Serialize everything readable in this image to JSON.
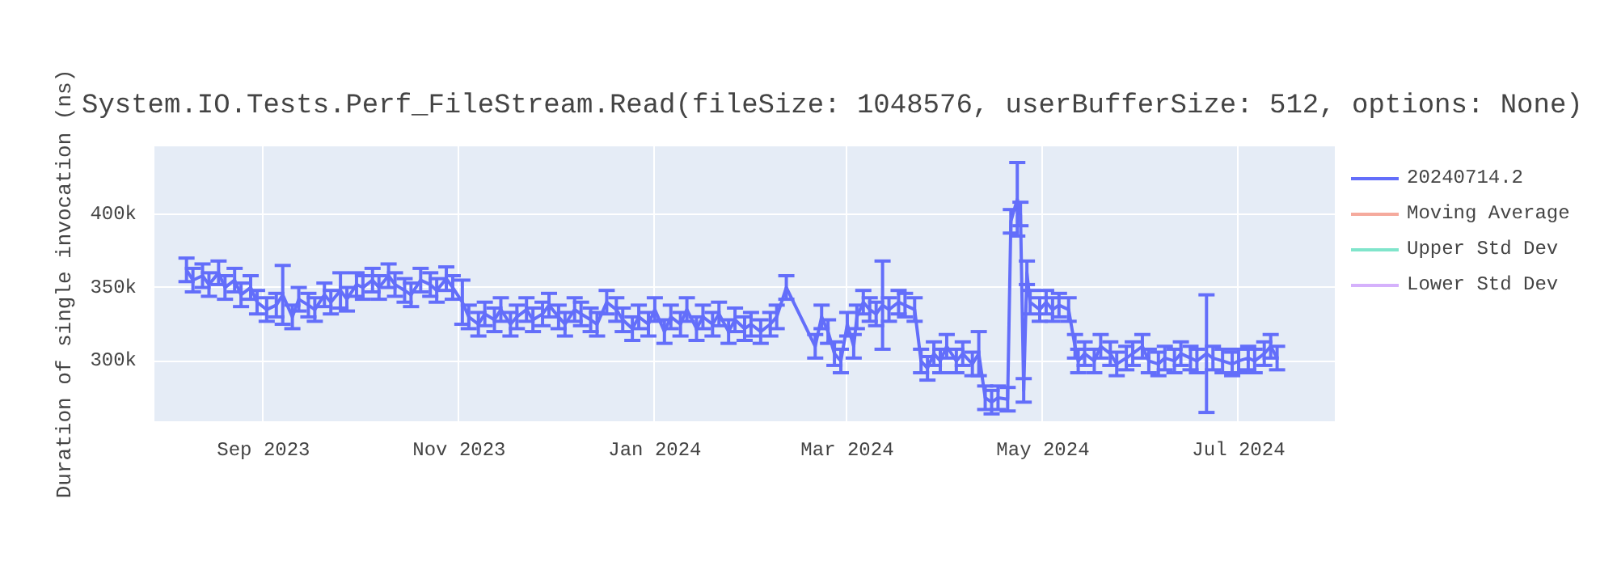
{
  "chart_data": {
    "type": "line",
    "title": "System.IO.Tests.Perf_FileStream.Read(fileSize: 1048576, userBufferSize: 512, options: None)",
    "ylabel": "Duration of single invocation (ns)",
    "x": [
      "2023-08-08",
      "2023-08-10",
      "2023-08-13",
      "2023-08-15",
      "2023-08-18",
      "2023-08-20",
      "2023-08-23",
      "2023-08-25",
      "2023-08-28",
      "2023-08-30",
      "2023-09-02",
      "2023-09-05",
      "2023-09-07",
      "2023-09-10",
      "2023-09-12",
      "2023-09-15",
      "2023-09-17",
      "2023-09-20",
      "2023-09-22",
      "2023-09-25",
      "2023-09-27",
      "2023-09-30",
      "2023-10-02",
      "2023-10-05",
      "2023-10-07",
      "2023-10-10",
      "2023-10-12",
      "2023-10-15",
      "2023-10-17",
      "2023-10-20",
      "2023-10-23",
      "2023-10-25",
      "2023-10-28",
      "2023-10-30",
      "2023-11-02",
      "2023-11-04",
      "2023-11-07",
      "2023-11-09",
      "2023-11-12",
      "2023-11-14",
      "2023-11-17",
      "2023-11-19",
      "2023-11-22",
      "2023-11-24",
      "2023-11-27",
      "2023-11-29",
      "2023-12-02",
      "2023-12-04",
      "2023-12-07",
      "2023-12-09",
      "2023-12-12",
      "2023-12-14",
      "2023-12-17",
      "2023-12-20",
      "2023-12-22",
      "2023-12-25",
      "2023-12-27",
      "2023-12-30",
      "2024-01-01",
      "2024-01-04",
      "2024-01-06",
      "2024-01-09",
      "2024-01-11",
      "2024-01-14",
      "2024-01-16",
      "2024-01-19",
      "2024-01-21",
      "2024-01-24",
      "2024-01-26",
      "2024-01-29",
      "2024-01-31",
      "2024-02-03",
      "2024-02-06",
      "2024-02-08",
      "2024-02-11",
      "2024-02-20",
      "2024-02-22",
      "2024-02-24",
      "2024-02-26",
      "2024-02-28",
      "2024-03-01",
      "2024-03-03",
      "2024-03-04",
      "2024-03-06",
      "2024-03-08",
      "2024-03-10",
      "2024-03-12",
      "2024-03-14",
      "2024-03-17",
      "2024-03-19",
      "2024-03-22",
      "2024-03-24",
      "2024-03-26",
      "2024-03-28",
      "2024-03-30",
      "2024-04-01",
      "2024-04-04",
      "2024-04-06",
      "2024-04-09",
      "2024-04-11",
      "2024-04-13",
      "2024-04-15",
      "2024-04-17",
      "2024-04-20",
      "2024-04-21",
      "2024-04-23",
      "2024-04-24",
      "2024-04-25",
      "2024-04-26",
      "2024-04-27",
      "2024-04-30",
      "2024-05-02",
      "2024-05-04",
      "2024-05-06",
      "2024-05-09",
      "2024-05-11",
      "2024-05-12",
      "2024-05-14",
      "2024-05-17",
      "2024-05-19",
      "2024-05-22",
      "2024-05-24",
      "2024-05-27",
      "2024-05-29",
      "2024-06-01",
      "2024-06-03",
      "2024-06-06",
      "2024-06-08",
      "2024-06-11",
      "2024-06-13",
      "2024-06-16",
      "2024-06-18",
      "2024-06-21",
      "2024-06-23",
      "2024-06-26",
      "2024-06-29",
      "2024-07-01",
      "2024-07-04",
      "2024-07-06",
      "2024-07-09",
      "2024-07-11",
      "2024-07-13"
    ],
    "series": [
      {
        "name": "20240714.2",
        "color": "#636efa",
        "values": [
          362000,
          355000,
          358000,
          352000,
          360000,
          350000,
          355000,
          345000,
          350000,
          340000,
          335000,
          338000,
          345000,
          330000,
          342000,
          338000,
          335000,
          345000,
          340000,
          348000,
          342000,
          352000,
          350000,
          355000,
          350000,
          358000,
          352000,
          348000,
          345000,
          355000,
          352000,
          348000,
          356000,
          350000,
          340000,
          330000,
          325000,
          332000,
          328000,
          335000,
          325000,
          330000,
          335000,
          328000,
          332000,
          338000,
          330000,
          325000,
          335000,
          332000,
          328000,
          325000,
          340000,
          335000,
          328000,
          322000,
          330000,
          325000,
          335000,
          320000,
          330000,
          325000,
          335000,
          322000,
          330000,
          325000,
          332000,
          320000,
          328000,
          322000,
          325000,
          320000,
          325000,
          330000,
          350000,
          310000,
          330000,
          320000,
          305000,
          300000,
          325000,
          310000,
          330000,
          340000,
          335000,
          332000,
          338000,
          335000,
          340000,
          338000,
          335000,
          300000,
          295000,
          305000,
          300000,
          310000,
          300000,
          305000,
          298000,
          305000,
          275000,
          272000,
          275000,
          274000,
          395000,
          410000,
          400000,
          280000,
          360000,
          340000,
          335000,
          340000,
          335000,
          338000,
          335000,
          310000,
          300000,
          305000,
          300000,
          310000,
          305000,
          298000,
          302000,
          305000,
          310000,
          300000,
          298000,
          302000,
          300000,
          305000,
          302000,
          300000,
          305000,
          302000,
          300000,
          298000,
          300000,
          302000,
          300000,
          305000,
          310000,
          302000
        ],
        "errors": [
          8000,
          8000,
          8000,
          8000,
          8000,
          8000,
          8000,
          8000,
          8000,
          8000,
          8000,
          8000,
          20000,
          8000,
          8000,
          8000,
          8000,
          8000,
          8000,
          12000,
          8000,
          8000,
          8000,
          8000,
          8000,
          8000,
          8000,
          8000,
          8000,
          8000,
          8000,
          8000,
          8000,
          8000,
          15000,
          8000,
          8000,
          8000,
          8000,
          8000,
          8000,
          8000,
          8000,
          8000,
          8000,
          8000,
          8000,
          8000,
          8000,
          8000,
          8000,
          8000,
          8000,
          8000,
          8000,
          8000,
          8000,
          8000,
          8000,
          8000,
          8000,
          8000,
          8000,
          8000,
          8000,
          8000,
          8000,
          8000,
          8000,
          8000,
          8000,
          8000,
          8000,
          8000,
          8000,
          8000,
          8000,
          8000,
          8000,
          8000,
          8000,
          8000,
          8000,
          8000,
          8000,
          8000,
          30000,
          8000,
          8000,
          8000,
          8000,
          8000,
          8000,
          8000,
          8000,
          8000,
          8000,
          8000,
          8000,
          15000,
          8000,
          8000,
          8000,
          8000,
          8000,
          25000,
          8000,
          8000,
          8000,
          8000,
          8000,
          8000,
          8000,
          8000,
          8000,
          8000,
          8000,
          8000,
          8000,
          8000,
          8000,
          8000,
          8000,
          8000,
          8000,
          8000,
          8000,
          8000,
          8000,
          8000,
          8000,
          8000,
          40000,
          8000,
          8000,
          8000,
          8000,
          8000,
          8000,
          8000,
          8000,
          8000
        ]
      },
      {
        "name": "Moving Average",
        "color": "#f5aa9d",
        "values": [
          null,
          null,
          null,
          null,
          null,
          null,
          null,
          null,
          null,
          null,
          null,
          null,
          null,
          null,
          null,
          null,
          null,
          null,
          null,
          null,
          null,
          null,
          null,
          null,
          null,
          null,
          null,
          null,
          null,
          null,
          null,
          null,
          null,
          null,
          null,
          null,
          null,
          null,
          null,
          null,
          null,
          null,
          null,
          null,
          null,
          null,
          null,
          null,
          null,
          null,
          null,
          null,
          null,
          null,
          null,
          null,
          null,
          null,
          null,
          null,
          null,
          null,
          null,
          null,
          null,
          null,
          null,
          null,
          null,
          null,
          null,
          null,
          null,
          null,
          null,
          null,
          null,
          null,
          null,
          null,
          null,
          null,
          null,
          null,
          null,
          null,
          null,
          null,
          null,
          null,
          null,
          null,
          null,
          null,
          null,
          null,
          null,
          null,
          null,
          null,
          null,
          null,
          null,
          null,
          null,
          null,
          null,
          null,
          null,
          null,
          null,
          null,
          null,
          null,
          null,
          null,
          null,
          null,
          null,
          null,
          null,
          null,
          null,
          null,
          null,
          null,
          null,
          null,
          null,
          null,
          null,
          null,
          null,
          null,
          null,
          null,
          null,
          null,
          null,
          null,
          null,
          null
        ]
      },
      {
        "name": "Upper Std Dev",
        "color": "#80e5cb",
        "values": [
          null,
          null,
          null,
          null,
          null,
          null,
          null,
          null,
          null,
          null,
          null,
          null,
          null,
          null,
          null,
          null,
          null,
          null,
          null,
          null,
          null,
          null,
          null,
          null,
          null,
          null,
          null,
          null,
          null,
          null,
          null,
          null,
          null,
          null,
          null,
          null,
          null,
          null,
          null,
          null,
          null,
          null,
          null,
          null,
          null,
          null,
          null,
          null,
          null,
          null,
          null,
          null,
          null,
          null,
          null,
          null,
          null,
          null,
          null,
          null,
          null,
          null,
          null,
          null,
          null,
          null,
          null,
          null,
          null,
          null,
          null,
          null,
          null,
          null,
          null,
          null,
          null,
          null,
          null,
          null,
          null,
          null,
          null,
          null,
          null,
          null,
          null,
          null,
          null,
          null,
          null,
          null,
          null,
          null,
          null,
          null,
          null,
          null,
          null,
          null,
          null,
          null,
          null,
          null,
          null,
          null,
          null,
          null,
          null,
          null,
          null,
          null,
          null,
          null,
          null,
          null,
          null,
          null,
          null,
          null,
          null,
          null,
          null,
          null,
          null,
          null,
          null,
          null,
          null,
          null,
          null,
          null,
          null,
          null,
          null,
          null,
          null,
          null,
          null,
          null,
          null,
          null
        ]
      },
      {
        "name": "Lower Std Dev",
        "color": "#d5b1fc",
        "values": [
          null,
          null,
          null,
          null,
          null,
          null,
          null,
          null,
          null,
          null,
          null,
          null,
          null,
          null,
          null,
          null,
          null,
          null,
          null,
          null,
          null,
          null,
          null,
          null,
          null,
          null,
          null,
          null,
          null,
          null,
          null,
          null,
          null,
          null,
          null,
          null,
          null,
          null,
          null,
          null,
          null,
          null,
          null,
          null,
          null,
          null,
          null,
          null,
          null,
          null,
          null,
          null,
          null,
          null,
          null,
          null,
          null,
          null,
          null,
          null,
          null,
          null,
          null,
          null,
          null,
          null,
          null,
          null,
          null,
          null,
          null,
          null,
          null,
          null,
          null,
          null,
          null,
          null,
          null,
          null,
          null,
          null,
          null,
          null,
          null,
          null,
          null,
          null,
          null,
          null,
          null,
          null,
          null,
          null,
          null,
          null,
          null,
          null,
          null,
          null,
          null,
          null,
          null,
          null,
          null,
          null,
          null,
          null,
          null,
          null,
          null,
          null,
          null,
          null,
          null,
          null,
          null,
          null,
          null,
          null,
          null,
          null,
          null,
          null,
          null,
          null,
          null,
          null,
          null,
          null,
          null,
          null,
          null,
          null,
          null,
          null,
          null,
          null,
          null,
          null,
          null,
          null
        ]
      }
    ],
    "xlim": [
      "2023-07-29",
      "2024-07-31"
    ],
    "xticks": [
      {
        "value": "2023-09-01",
        "label": "Sep 2023"
      },
      {
        "value": "2023-11-01",
        "label": "Nov 2023"
      },
      {
        "value": "2024-01-01",
        "label": "Jan 2024"
      },
      {
        "value": "2024-03-01",
        "label": "Mar 2024"
      },
      {
        "value": "2024-05-01",
        "label": "May 2024"
      },
      {
        "value": "2024-07-01",
        "label": "Jul 2024"
      }
    ],
    "ylim": [
      259000,
      446000
    ],
    "yticks": [
      {
        "value": 300000,
        "label": "300k"
      },
      {
        "value": 350000,
        "label": "350k"
      },
      {
        "value": 400000,
        "label": "400k"
      }
    ],
    "grid": true,
    "legend": "right",
    "line_style": "solid",
    "marker": "none"
  }
}
